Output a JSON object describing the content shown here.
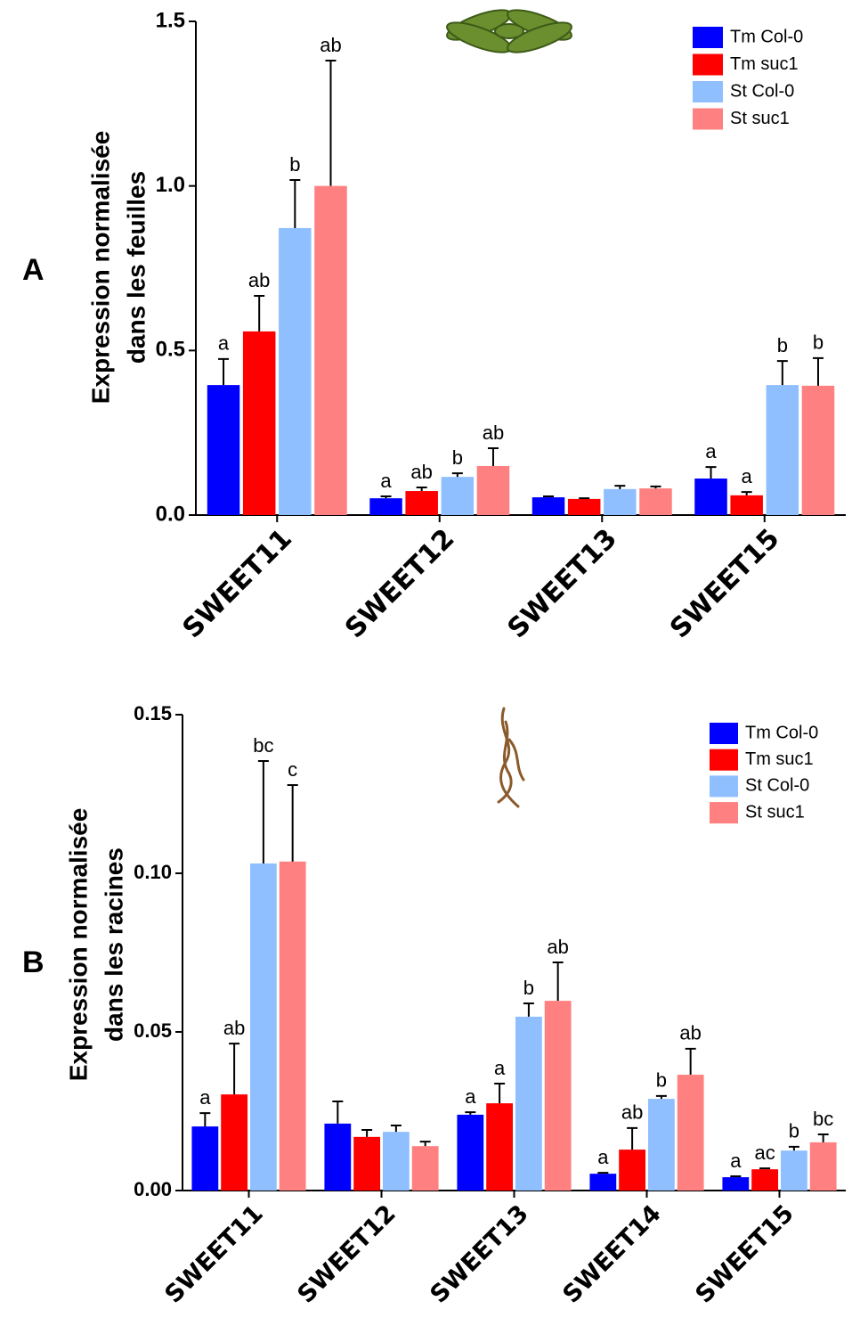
{
  "chart_data": [
    {
      "type": "bar",
      "panel_label": "A",
      "ylabel": [
        "Expression normalisée",
        "dans les feuilles"
      ],
      "categories": [
        "SWEET11",
        "SWEET12",
        "SWEET13",
        "SWEET15"
      ],
      "series": [
        {
          "name": "Tm Col-0",
          "color": "#0000ff",
          "values": [
            0.395,
            0.051,
            0.054,
            0.111
          ],
          "errors": [
            0.079,
            0.006,
            0.003,
            0.035
          ],
          "letters": [
            "a",
            "a",
            null,
            "a"
          ]
        },
        {
          "name": "Tm suc1",
          "color": "#ff0000",
          "values": [
            0.558,
            0.073,
            0.049,
            0.06
          ],
          "errors": [
            0.108,
            0.011,
            0.002,
            0.01
          ],
          "letters": [
            "ab",
            "ab",
            null,
            "a"
          ]
        },
        {
          "name": "St Col-0",
          "color": "#8fbfff",
          "values": [
            0.872,
            0.116,
            0.079,
            0.395
          ],
          "errors": [
            0.146,
            0.011,
            0.01,
            0.073
          ],
          "letters": [
            "b",
            "b",
            null,
            "b"
          ]
        },
        {
          "name": "St suc1",
          "color": "#ff8080",
          "values": [
            1.0,
            0.149,
            0.081,
            0.393
          ],
          "errors": [
            0.381,
            0.054,
            0.006,
            0.084
          ],
          "letters": [
            "ab",
            "ab",
            null,
            "b"
          ]
        }
      ],
      "ylim": [
        0,
        1.5
      ],
      "yticks": [
        {
          "value": 0,
          "label": "0.0"
        },
        0.5,
        {
          "value": 1,
          "label": "1.0"
        },
        1.5
      ],
      "legend": "upper right"
    },
    {
      "type": "bar",
      "panel_label": "B",
      "ylabel": [
        "Expression normalisée",
        "dans les racines"
      ],
      "categories": [
        "SWEET11",
        "SWEET12",
        "SWEET13",
        "SWEET14",
        "SWEET15"
      ],
      "series": [
        {
          "name": "Tm Col-0",
          "color": "#0000ff",
          "values": [
            0.0202,
            0.0211,
            0.0239,
            0.0053,
            0.0042
          ],
          "errors": [
            0.0042,
            0.007,
            0.0008,
            0.0003,
            0.0003
          ],
          "letters": [
            "a",
            null,
            "a",
            "a",
            "a"
          ]
        },
        {
          "name": "Tm suc1",
          "color": "#ff0000",
          "values": [
            0.0303,
            0.0169,
            0.0275,
            0.0129,
            0.0067
          ],
          "errors": [
            0.016,
            0.0022,
            0.0062,
            0.0068,
            0.0003
          ],
          "letters": [
            "ab",
            null,
            "a",
            "ab",
            "ac"
          ]
        },
        {
          "name": "St Col-0",
          "color": "#8fbfff",
          "values": [
            0.1031,
            0.0185,
            0.0548,
            0.0289,
            0.0126
          ],
          "errors": [
            0.0323,
            0.002,
            0.0042,
            0.0009,
            0.0012
          ],
          "letters": [
            "bc",
            null,
            "b",
            "b",
            "b"
          ]
        },
        {
          "name": "St suc1",
          "color": "#ff8080",
          "values": [
            0.1037,
            0.014,
            0.0598,
            0.0365,
            0.0152
          ],
          "errors": [
            0.0241,
            0.0014,
            0.0121,
            0.0082,
            0.0025
          ],
          "letters": [
            "c",
            null,
            "ab",
            "ab",
            "bc"
          ]
        }
      ],
      "ylim": [
        0,
        0.15
      ],
      "yticks": [
        {
          "value": 0,
          "label": "0.00"
        },
        {
          "value": 0.05,
          "label": "0.05"
        },
        {
          "value": 0.1,
          "label": "0.10"
        },
        {
          "value": 0.15,
          "label": "0.15"
        }
      ],
      "legend": "upper right"
    }
  ]
}
